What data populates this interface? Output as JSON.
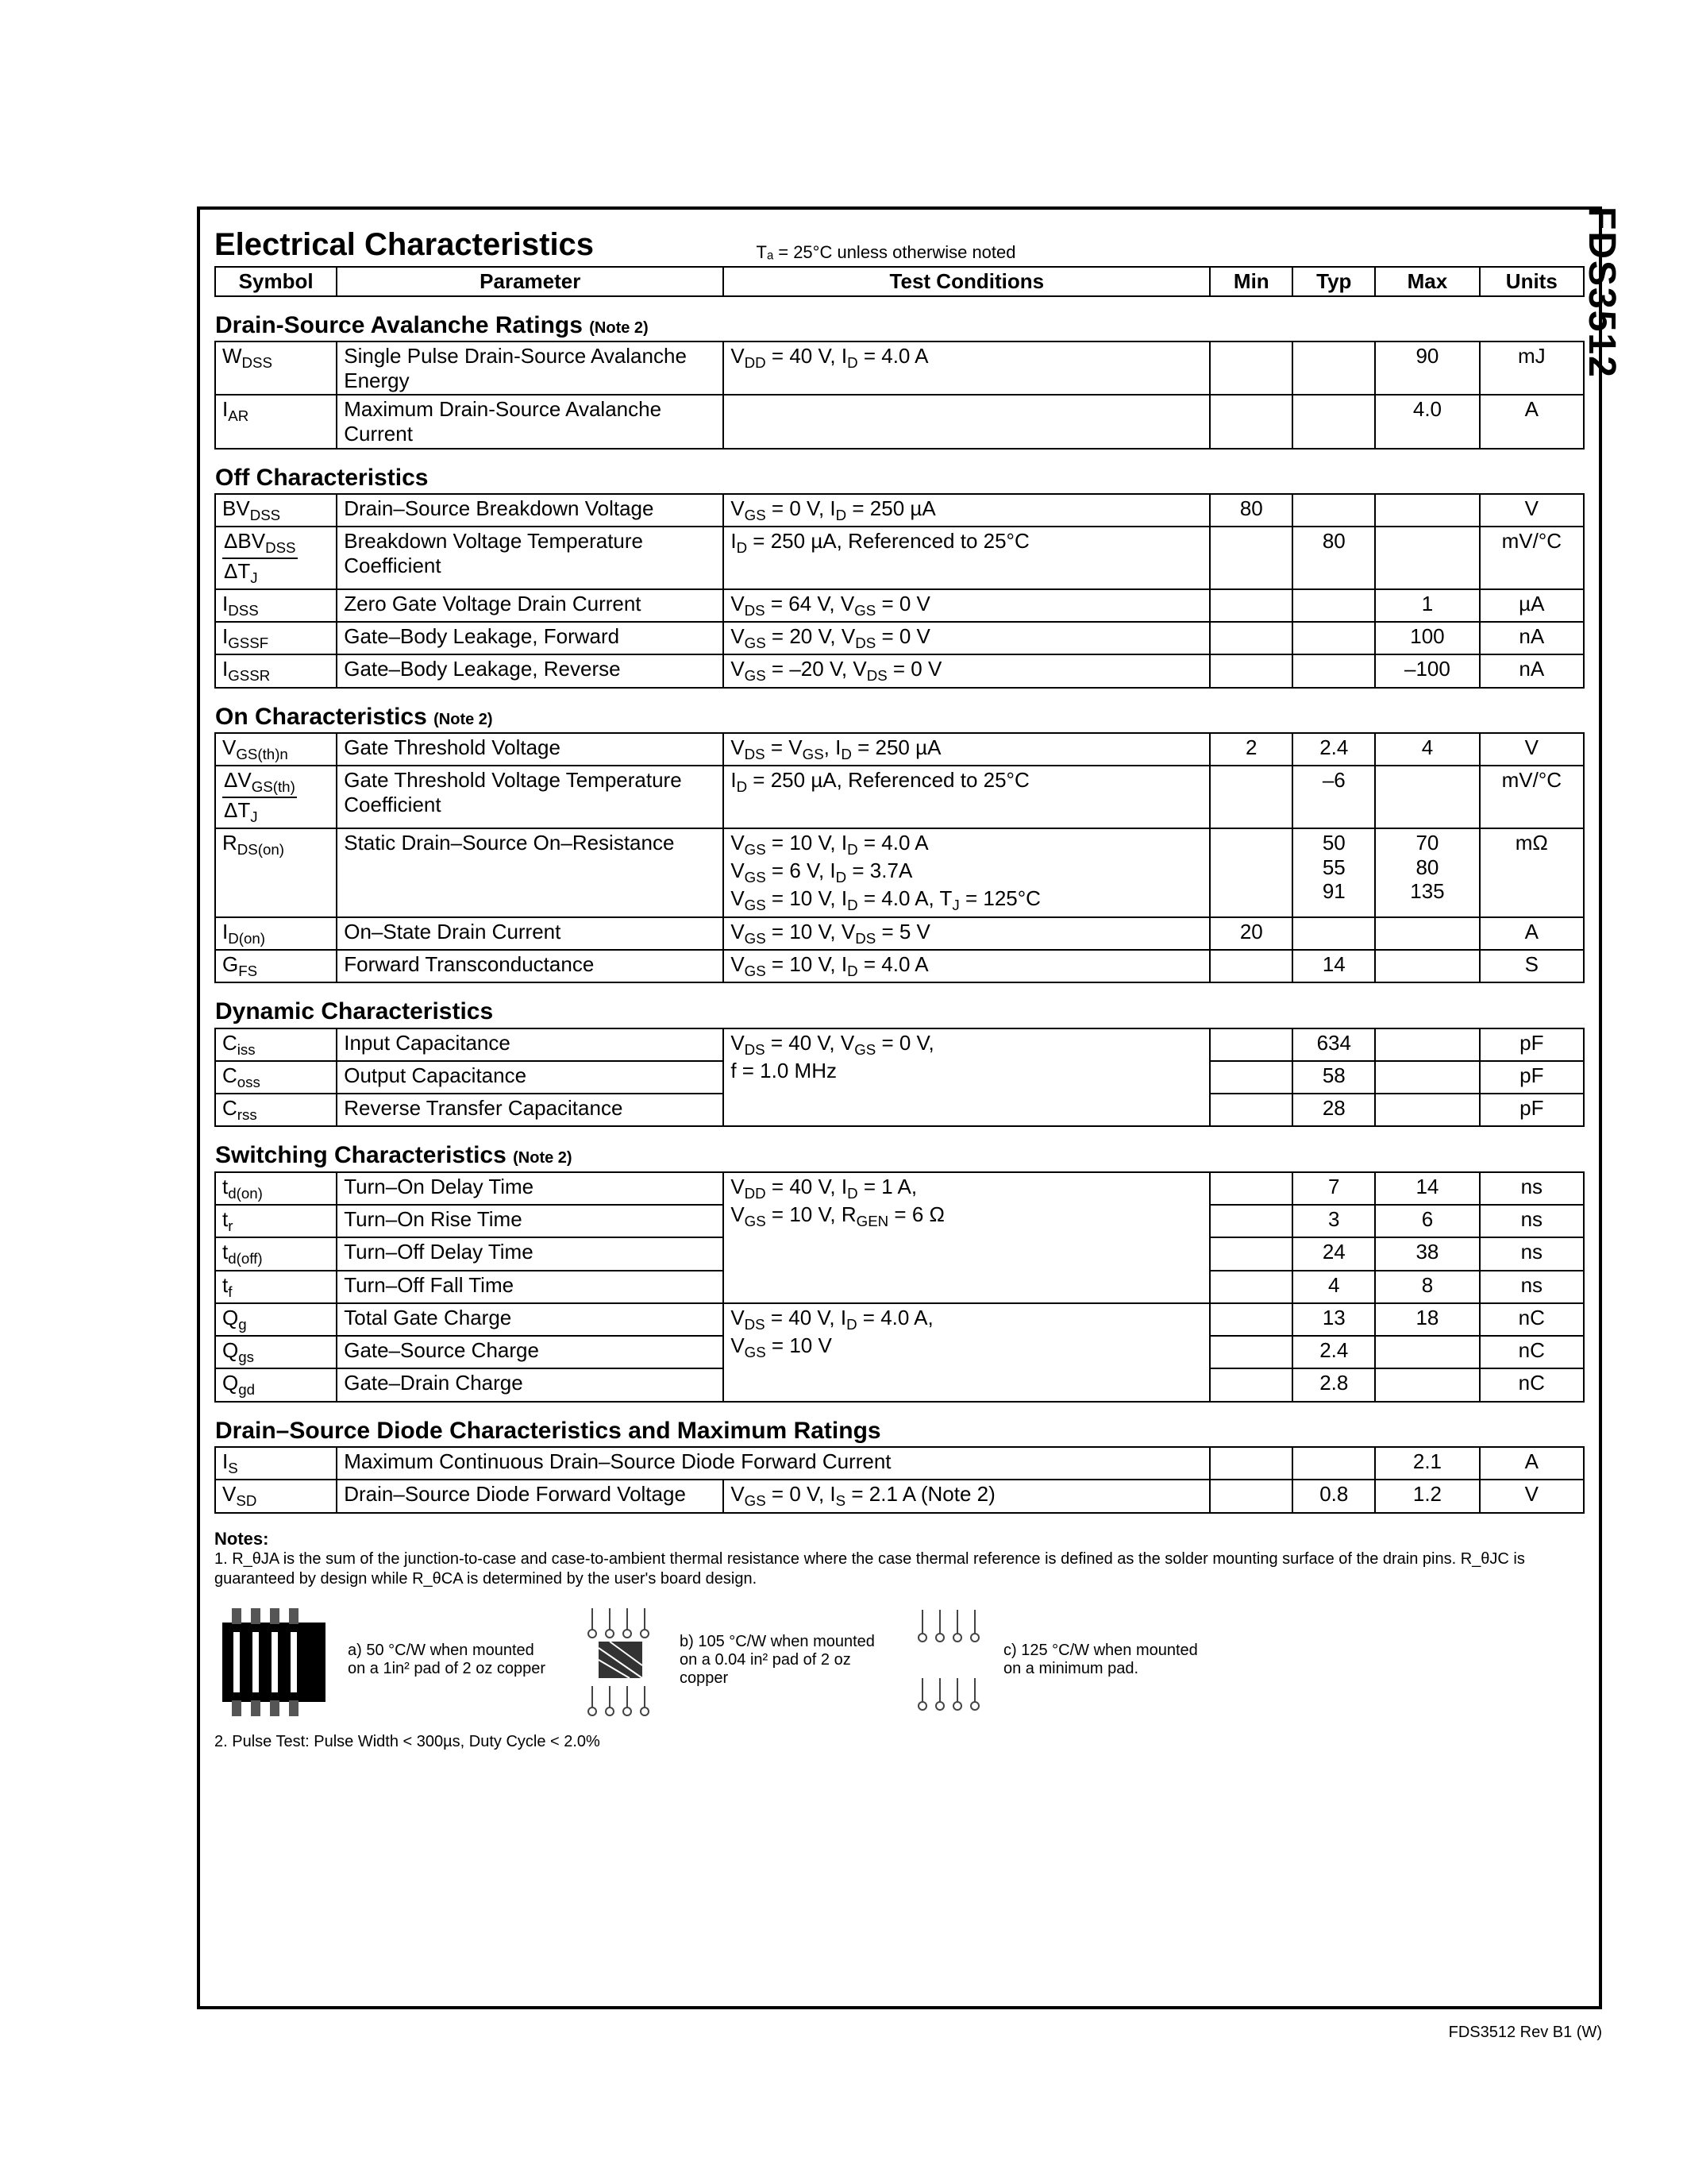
{
  "part_number": "FDS3512",
  "rev": "FDS3512 Rev B1 (W)",
  "title": "Electrical Characteristics",
  "title_condition": "Tₐ = 25°C unless otherwise noted",
  "headers": {
    "symbol": "Symbol",
    "parameter": "Parameter",
    "test": "Test Conditions",
    "min": "Min",
    "typ": "Typ",
    "max": "Max",
    "units": "Units"
  },
  "sections": [
    {
      "title": "Drain-Source Avalanche Ratings",
      "note": "(Note 2)",
      "rows": [
        {
          "sym": "W_DSS",
          "param": "Single Pulse Drain-Source Avalanche Energy",
          "test": "V_DD = 40 V,   I_D = 4.0 A",
          "min": "",
          "typ": "",
          "max": "90",
          "units": "mJ"
        },
        {
          "sym": "I_AR",
          "param": "Maximum Drain-Source Avalanche Current",
          "test": "",
          "min": "",
          "typ": "",
          "max": "4.0",
          "units": "A"
        }
      ]
    },
    {
      "title": "Off Characteristics",
      "note": "",
      "rows": [
        {
          "sym": "BV_DSS",
          "param": "Drain–Source Breakdown Voltage",
          "test": "V_GS = 0 V,     I_D = 250 µA",
          "min": "80",
          "typ": "",
          "max": "",
          "units": "V"
        },
        {
          "sym": "ΔBV_DSS / ΔT_J",
          "param": "Breakdown Voltage Temperature Coefficient",
          "test": "I_D = 250 µA, Referenced to 25°C",
          "min": "",
          "typ": "80",
          "max": "",
          "units": "mV/°C"
        },
        {
          "sym": "I_DSS",
          "param": "Zero Gate Voltage Drain Current",
          "test": "V_DS = 64 V,   V_GS = 0 V",
          "min": "",
          "typ": "",
          "max": "1",
          "units": "µA"
        },
        {
          "sym": "I_GSSF",
          "param": "Gate–Body Leakage, Forward",
          "test": "V_GS = 20 V,   V_DS = 0 V",
          "min": "",
          "typ": "",
          "max": "100",
          "units": "nA"
        },
        {
          "sym": "I_GSSR",
          "param": "Gate–Body Leakage, Reverse",
          "test": "V_GS = –20 V, V_DS = 0 V",
          "min": "",
          "typ": "",
          "max": "–100",
          "units": "nA"
        }
      ]
    },
    {
      "title": "On Characteristics",
      "note": "(Note 2)",
      "rows": [
        {
          "sym": "V_GS(th)n",
          "param": "Gate Threshold Voltage",
          "test": "V_DS = V_GS,     I_D = 250 µA",
          "min": "2",
          "typ": "2.4",
          "max": "4",
          "units": "V"
        },
        {
          "sym": "ΔV_GS(th) / ΔT_J",
          "param": "Gate Threshold Voltage Temperature Coefficient",
          "test": "I_D = 250 µA, Referenced to 25°C",
          "min": "",
          "typ": "–6",
          "max": "",
          "units": "mV/°C"
        },
        {
          "sym": "R_DS(on)",
          "param": "Static Drain–Source On–Resistance",
          "test": "V_GS = 10 V,   I_D = 4.0 A\nV_GS = 6 V,     I_D = 3.7A\nV_GS = 10 V,   I_D = 4.0 A, T_J = 125°C",
          "min": "",
          "typ": "50\n55\n91",
          "max": "70\n80\n135",
          "units": "mΩ"
        },
        {
          "sym": "I_D(on)",
          "param": "On–State Drain Current",
          "test": "V_GS = 10 V,   V_DS = 5 V",
          "min": "20",
          "typ": "",
          "max": "",
          "units": "A"
        },
        {
          "sym": "G_FS",
          "param": "Forward Transconductance",
          "test": "V_GS = 10 V,   I_D = 4.0 A",
          "min": "",
          "typ": "14",
          "max": "",
          "units": "S"
        }
      ]
    },
    {
      "title": "Dynamic Characteristics",
      "note": "",
      "rows": [
        {
          "sym": "C_iss",
          "param": "Input Capacitance",
          "test": "V_DS = 40 V,   V_GS = 0 V,\nf = 1.0 MHz",
          "min": "",
          "typ": "634",
          "max": "",
          "units": "pF",
          "test_rowspan": 3
        },
        {
          "sym": "C_oss",
          "param": "Output Capacitance",
          "min": "",
          "typ": "58",
          "max": "",
          "units": "pF"
        },
        {
          "sym": "C_rss",
          "param": "Reverse Transfer Capacitance",
          "min": "",
          "typ": "28",
          "max": "",
          "units": "pF"
        }
      ]
    },
    {
      "title": "Switching Characteristics",
      "note": "(Note 2)",
      "rows": [
        {
          "sym": "t_d(on)",
          "param": "Turn–On Delay Time",
          "test": "V_DD = 40 V,   I_D = 1 A,\nV_GS = 10 V,   R_GEN = 6 Ω",
          "min": "",
          "typ": "7",
          "max": "14",
          "units": "ns",
          "test_rowspan": 4
        },
        {
          "sym": "t_r",
          "param": "Turn–On Rise Time",
          "min": "",
          "typ": "3",
          "max": "6",
          "units": "ns"
        },
        {
          "sym": "t_d(off)",
          "param": "Turn–Off Delay Time",
          "min": "",
          "typ": "24",
          "max": "38",
          "units": "ns"
        },
        {
          "sym": "t_f",
          "param": "Turn–Off Fall Time",
          "min": "",
          "typ": "4",
          "max": "8",
          "units": "ns"
        },
        {
          "sym": "Q_g",
          "param": "Total Gate Charge",
          "test": "V_DS = 40 V,   I_D = 4.0 A,\nV_GS = 10 V",
          "min": "",
          "typ": "13",
          "max": "18",
          "units": "nC",
          "test_rowspan": 3
        },
        {
          "sym": "Q_gs",
          "param": "Gate–Source Charge",
          "min": "",
          "typ": "2.4",
          "max": "",
          "units": "nC"
        },
        {
          "sym": "Q_gd",
          "param": "Gate–Drain Charge",
          "min": "",
          "typ": "2.8",
          "max": "",
          "units": "nC"
        }
      ]
    },
    {
      "title": "Drain–Source Diode Characteristics and Maximum Ratings",
      "note": "",
      "rows": [
        {
          "sym": "I_S",
          "param": "Maximum Continuous Drain–Source Diode Forward Current",
          "param_colspan": 2,
          "min": "",
          "typ": "",
          "max": "2.1",
          "units": "A"
        },
        {
          "sym": "V_SD",
          "param": "Drain–Source Diode Forward Voltage",
          "test": "V_GS = 0 V,     I_S = 2.1 A          (Note 2)",
          "min": "",
          "typ": "0.8",
          "max": "1.2",
          "units": "V"
        }
      ]
    }
  ],
  "notes": {
    "title": "Notes:",
    "n1": "1. R_θJA is the sum of the junction-to-case and case-to-ambient thermal resistance where the case thermal reference is defined as the solder mounting surface of the drain pins.  R_θJC is guaranteed by design while R_θCA is determined by the user's board design.",
    "n2": "2. Pulse Test: Pulse Width < 300µs, Duty Cycle < 2.0%"
  },
  "thermal": {
    "a": "a)  50 °C/W when mounted on a 1in² pad of 2 oz copper",
    "b": "b)  105 °C/W when mounted on a 0.04 in² pad of 2 oz copper",
    "c": "c)  125 °C/W when mounted on a minimum pad."
  },
  "style": {
    "border_color": "#000000",
    "background": "#ffffff",
    "title_fontsize": 40,
    "header_fontsize": 30,
    "cell_fontsize": 26,
    "section_fontsize": 30,
    "notes_fontsize": 20
  }
}
